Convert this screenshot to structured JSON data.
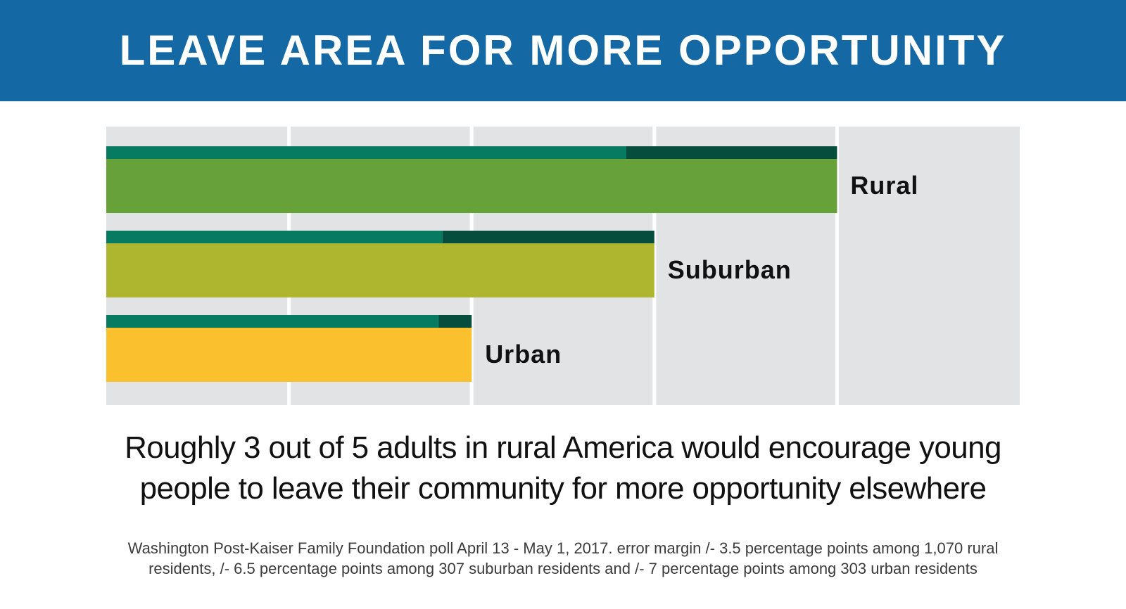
{
  "header": {
    "title": "LEAVE AREA FOR MORE OPPORTUNITY"
  },
  "chart_data": {
    "type": "bar",
    "orientation": "horizontal",
    "categories": [
      "Rural",
      "Suburban",
      "Urban"
    ],
    "values": [
      0.6,
      0.45,
      0.3
    ],
    "value_unit": "share of adults",
    "marker_values": [
      0.427,
      0.276,
      0.273
    ],
    "xlim": [
      0,
      0.75
    ],
    "grid_columns": 5,
    "colors": {
      "Rural": "#66a13a",
      "Suburban": "#adb62e",
      "Urban": "#fbc02d",
      "marker_light": "#077a62",
      "marker_dark": "#064d3e",
      "background": "#e2e3e5"
    }
  },
  "headline": {
    "line1": "Roughly 3 out of 5 adults in rural America would encourage young",
    "line2": "people to leave their community for more opportunity elsewhere"
  },
  "source": {
    "line1": "Washington Post-Kaiser Family Foundation poll April 13 - May 1, 2017. error margin /- 3.5 percentage points among 1,070 rural",
    "line2": "residents, /- 6.5 percentage points among 307 suburban residents and /- 7 percentage points among 303 urban residents"
  }
}
